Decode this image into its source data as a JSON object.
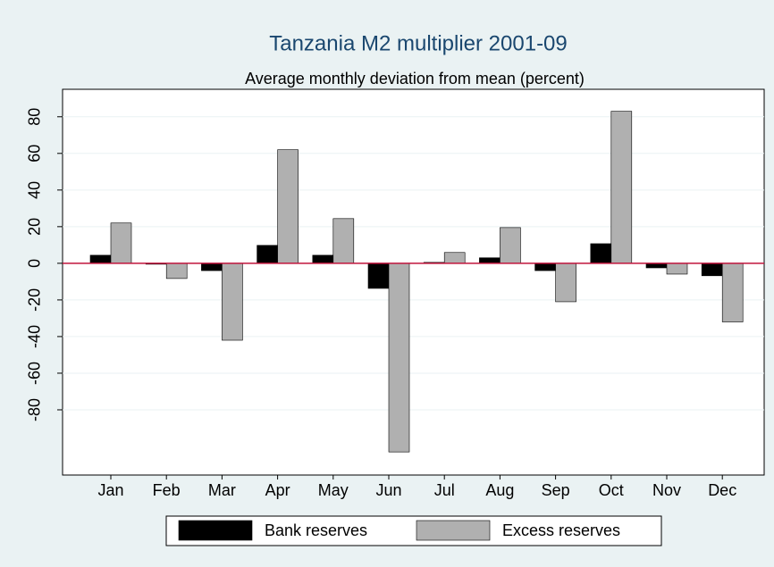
{
  "chart_data": {
    "type": "bar",
    "title": "Tanzania M2 multiplier 2001-09",
    "subtitle": "Average monthly deviation from mean (percent)",
    "categories": [
      "Jan",
      "Feb",
      "Mar",
      "Apr",
      "May",
      "Jun",
      "Jul",
      "Aug",
      "Sep",
      "Oct",
      "Nov",
      "Dec"
    ],
    "series": [
      {
        "name": "Bank reserves",
        "color": "#000000",
        "values": [
          4.4,
          -0.5,
          -4,
          9.8,
          4.4,
          -13.7,
          0.5,
          3,
          -4,
          10.7,
          -2.5,
          -6.8
        ]
      },
      {
        "name": "Excess reserves",
        "color": "#b0b0b0",
        "values": [
          22,
          -8.3,
          -42,
          62,
          24.4,
          -103,
          5.9,
          19.5,
          -21,
          83,
          -5.9,
          -32
        ]
      }
    ],
    "ylim": [
      -115.6,
      95
    ],
    "yticks": [
      -80,
      -60,
      -40,
      -20,
      0,
      20,
      40,
      60,
      80
    ],
    "grid": true,
    "zero_line_color": "#c0143c",
    "legend": "bottom"
  }
}
